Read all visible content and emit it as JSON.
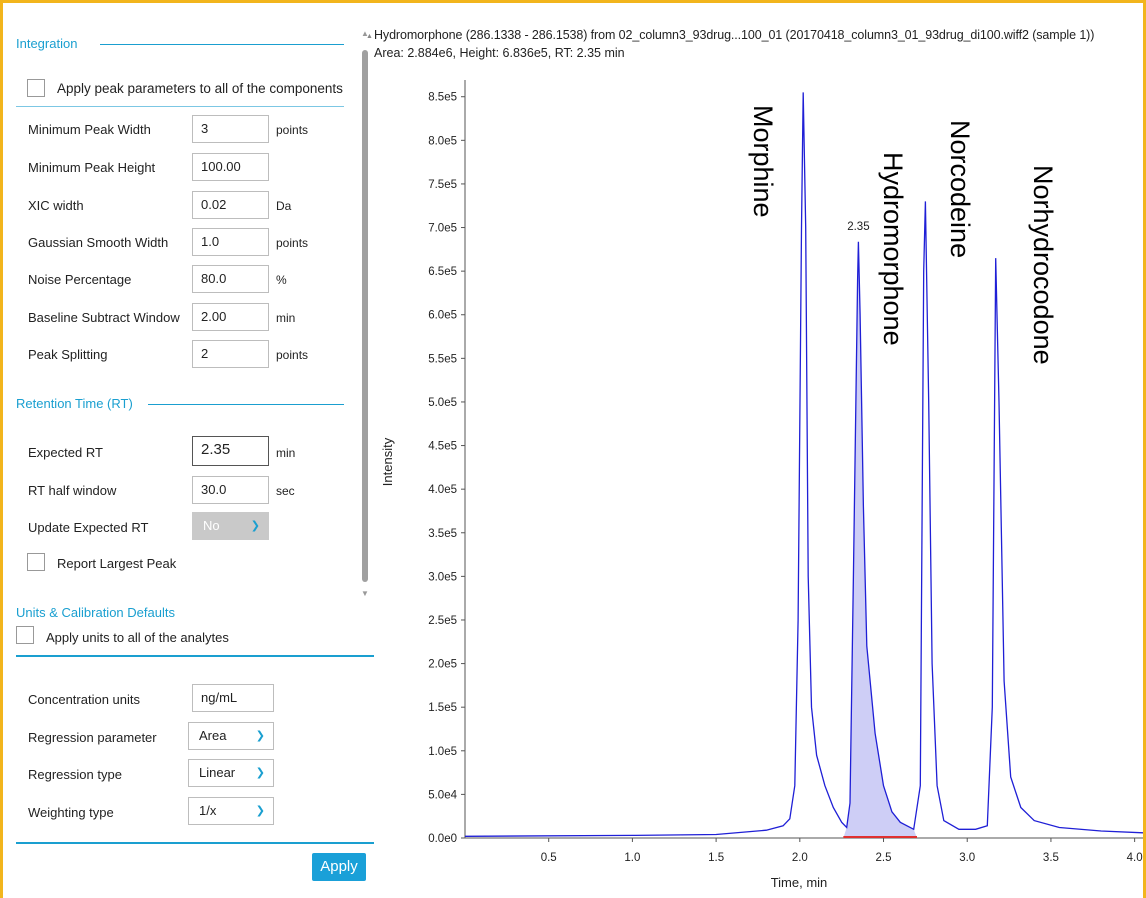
{
  "integration": {
    "title": "Integration",
    "apply_all_label": "Apply peak parameters to all of the components",
    "fields": [
      {
        "label": "Minimum Peak Width",
        "value": "3",
        "unit": "points"
      },
      {
        "label": "Minimum Peak Height",
        "value": "100.00",
        "unit": ""
      },
      {
        "label": "XIC width",
        "value": "0.02",
        "unit": "Da"
      },
      {
        "label": "Gaussian Smooth Width",
        "value": "1.0",
        "unit": "points"
      },
      {
        "label": "Noise Percentage",
        "value": "80.0",
        "unit": "%"
      },
      {
        "label": "Baseline Subtract Window",
        "value": "2.00",
        "unit": "min"
      },
      {
        "label": "Peak Splitting",
        "value": "2",
        "unit": "points"
      }
    ]
  },
  "retention": {
    "title": "Retention Time (RT)",
    "expected_rt_label": "Expected RT",
    "expected_rt_value": "2.35",
    "expected_rt_unit": "min",
    "half_window_label": "RT half window",
    "half_window_value": "30.0",
    "half_window_unit": "sec",
    "update_label": "Update Expected RT",
    "update_value": "No",
    "largest_peak_label": "Report Largest Peak"
  },
  "units": {
    "title": "Units & Calibration Defaults",
    "apply_all_label": "Apply units to all of the analytes",
    "fields": [
      {
        "label": "Concentration units",
        "value": "ng/mL",
        "kind": "input"
      },
      {
        "label": "Regression parameter",
        "value": "Area",
        "kind": "select"
      },
      {
        "label": "Regression type",
        "value": "Linear",
        "kind": "select"
      },
      {
        "label": "Weighting type",
        "value": "1/x",
        "kind": "select"
      }
    ],
    "apply_button": "Apply"
  },
  "chart_header": {
    "line1": "Hydromorphone (286.1338 - 286.1538) from 02_column3_93drug...100_01 (20170418_column3_01_93drug_di100.wiff2 (sample 1))",
    "line2": "Area: 2.884e6, Height: 6.836e5, RT: 2.35 min"
  },
  "chart_data": {
    "type": "line",
    "xlabel": "Time, min",
    "ylabel": "Intensity",
    "xlim": [
      0,
      4.05
    ],
    "ylim": [
      0,
      860000
    ],
    "xticks": [
      0.5,
      1.0,
      1.5,
      2.0,
      2.5,
      3.0,
      3.5,
      4.0
    ],
    "xtick_labels": [
      "0.5",
      "1.0",
      "1.5",
      "2.0",
      "2.5",
      "3.0",
      "3.5",
      "4.0"
    ],
    "yticks": [
      0,
      50000,
      100000,
      150000,
      200000,
      250000,
      300000,
      350000,
      400000,
      450000,
      500000,
      550000,
      600000,
      650000,
      700000,
      750000,
      800000,
      850000
    ],
    "ytick_labels": [
      "0.0e0",
      "5.0e4",
      "1.0e5",
      "1.5e5",
      "2.0e5",
      "2.5e5",
      "3.0e5",
      "3.5e5",
      "4.0e5",
      "4.5e5",
      "5.0e5",
      "5.5e5",
      "6.0e5",
      "6.5e5",
      "7.0e5",
      "7.5e5",
      "8.0e5",
      "8.5e5"
    ],
    "series_color": "#1f1fd6",
    "fill_color": "#1f1fd6",
    "baseline_color": "#e03030",
    "peaks": [
      {
        "name": "Morphine",
        "rt": 2.02,
        "height": 855000
      },
      {
        "name": "Hydromorphone",
        "rt": 2.35,
        "height": 683600
      },
      {
        "name": "Norcodeine",
        "rt": 2.75,
        "height": 730000
      },
      {
        "name": "Norhydrocodone",
        "rt": 3.17,
        "height": 665000
      }
    ],
    "points": [
      [
        0.0,
        2000
      ],
      [
        1.0,
        3000
      ],
      [
        1.5,
        4000
      ],
      [
        1.8,
        9000
      ],
      [
        1.9,
        14000
      ],
      [
        1.94,
        22000
      ],
      [
        1.97,
        60000
      ],
      [
        1.99,
        250000
      ],
      [
        2.01,
        700000
      ],
      [
        2.02,
        855000
      ],
      [
        2.035,
        700000
      ],
      [
        2.05,
        300000
      ],
      [
        2.07,
        150000
      ],
      [
        2.1,
        95000
      ],
      [
        2.15,
        60000
      ],
      [
        2.2,
        35000
      ],
      [
        2.25,
        18000
      ],
      [
        2.28,
        12000
      ],
      [
        2.3,
        40000
      ],
      [
        2.32,
        300000
      ],
      [
        2.345,
        640000
      ],
      [
        2.35,
        683600
      ],
      [
        2.36,
        600000
      ],
      [
        2.38,
        380000
      ],
      [
        2.4,
        220000
      ],
      [
        2.45,
        120000
      ],
      [
        2.5,
        60000
      ],
      [
        2.55,
        30000
      ],
      [
        2.6,
        18000
      ],
      [
        2.68,
        10000
      ],
      [
        2.72,
        60000
      ],
      [
        2.74,
        650000
      ],
      [
        2.75,
        730000
      ],
      [
        2.77,
        500000
      ],
      [
        2.79,
        200000
      ],
      [
        2.82,
        60000
      ],
      [
        2.86,
        20000
      ],
      [
        2.95,
        10000
      ],
      [
        3.05,
        10000
      ],
      [
        3.12,
        14000
      ],
      [
        3.15,
        150000
      ],
      [
        3.17,
        665000
      ],
      [
        3.19,
        500000
      ],
      [
        3.22,
        180000
      ],
      [
        3.26,
        70000
      ],
      [
        3.32,
        35000
      ],
      [
        3.4,
        20000
      ],
      [
        3.55,
        12000
      ],
      [
        3.8,
        8000
      ],
      [
        4.05,
        6000
      ]
    ],
    "annotation": "2.35",
    "integrated_range": [
      2.26,
      2.7
    ]
  }
}
